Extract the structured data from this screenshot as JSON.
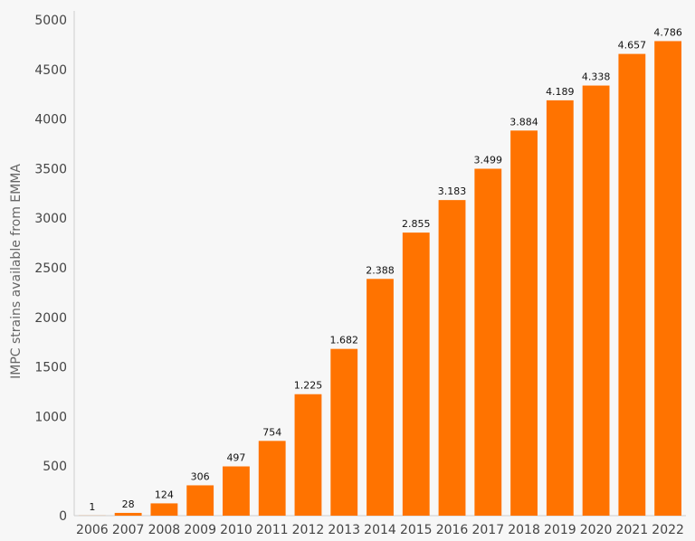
{
  "chart_data": {
    "type": "bar",
    "categories": [
      "2006",
      "2007",
      "2008",
      "2009",
      "2010",
      "2011",
      "2012",
      "2013",
      "2014",
      "2015",
      "2016",
      "2017",
      "2018",
      "2019",
      "2020",
      "2021",
      "2022"
    ],
    "values": [
      1,
      28,
      124,
      306,
      497,
      754,
      1225,
      1682,
      2388,
      2855,
      3183,
      3499,
      3884,
      4189,
      4338,
      4657,
      4786
    ],
    "data_labels": [
      "1",
      "28",
      "124",
      "306",
      "497",
      "754",
      "1.225",
      "1.682",
      "2.388",
      "2.855",
      "3.183",
      "3.499",
      "3.884",
      "4.189",
      "4.338",
      "4.657",
      "4.786"
    ],
    "ylabel": "IMPC strains available from EMMA",
    "xlabel": "",
    "ylim": [
      0,
      5000
    ],
    "yticks": [
      0,
      500,
      1000,
      1500,
      2000,
      2500,
      3000,
      3500,
      4000,
      4500,
      5000
    ],
    "ytick_labels": [
      "0",
      "500",
      "1000",
      "1500",
      "2000",
      "2500",
      "3000",
      "3500",
      "4000",
      "4500",
      "5000"
    ],
    "grid": false,
    "legend": "none",
    "colors": {
      "bar": "#ff7300",
      "background": "#f7f7f7",
      "axis": "#cccccc"
    }
  }
}
